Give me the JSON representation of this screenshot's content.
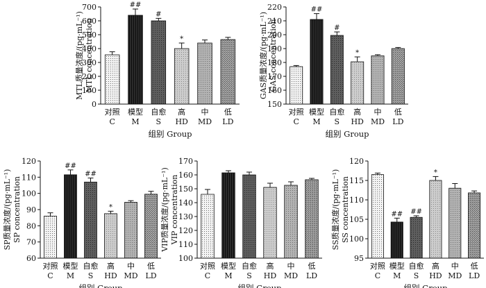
{
  "chart_data": [
    {
      "type": "bar",
      "panel": "MTL",
      "categories": [
        "C",
        "M",
        "S",
        "HD",
        "MD",
        "LD"
      ],
      "category_labels_cn": [
        "对照",
        "模型",
        "自愈",
        "高",
        "中",
        "低"
      ],
      "values": [
        355,
        640,
        600,
        400,
        440,
        465
      ],
      "errors": [
        22,
        45,
        18,
        40,
        22,
        16
      ],
      "significance": [
        "",
        "##",
        "#",
        "*",
        "",
        ""
      ],
      "ylabel_cn": "MTL质量浓度/(pg·mL⁻¹)",
      "ylabel": "MTL concentration",
      "xlabel": "组别 Group",
      "ylim": [
        0,
        700
      ],
      "yticks": [
        0,
        100,
        200,
        300,
        400,
        500,
        600,
        700
      ]
    },
    {
      "type": "bar",
      "panel": "GAS",
      "categories": [
        "C",
        "M",
        "S",
        "HD",
        "MD",
        "LD"
      ],
      "category_labels_cn": [
        "对照",
        "模型",
        "自愈",
        "高",
        "中",
        "低"
      ],
      "values": [
        177,
        211,
        199.5,
        180.5,
        184.8,
        190
      ],
      "errors": [
        0.8,
        4.2,
        2.5,
        3.5,
        0.8,
        0.8
      ],
      "significance": [
        "",
        "##",
        "#",
        "*",
        "",
        ""
      ],
      "ylabel_cn": "GAS质量浓度/(pg·mL⁻¹)",
      "ylabel": "GAS concentration",
      "xlabel": "组别 Group",
      "ylim": [
        150,
        220
      ],
      "yticks": [
        150,
        160,
        170,
        180,
        190,
        200,
        210,
        220
      ]
    },
    {
      "type": "bar",
      "panel": "SP",
      "categories": [
        "C",
        "M",
        "S",
        "HD",
        "MD",
        "LD"
      ],
      "category_labels_cn": [
        "对照",
        "模型",
        "自愈",
        "高",
        "中",
        "低"
      ],
      "values": [
        86,
        111.5,
        107,
        87.5,
        94.5,
        99.5
      ],
      "errors": [
        2,
        3,
        2.5,
        1.5,
        1,
        1.8
      ],
      "significance": [
        "",
        "##",
        "##",
        "*",
        "",
        ""
      ],
      "ylabel_cn": "SP质量浓度/(pg·mL⁻¹)",
      "ylabel": "SP concentration",
      "xlabel": "组别 Group",
      "ylim": [
        60,
        120
      ],
      "yticks": [
        60,
        70,
        80,
        90,
        100,
        110,
        120
      ]
    },
    {
      "type": "bar",
      "panel": "VIP",
      "categories": [
        "C",
        "M",
        "S",
        "HD",
        "MD",
        "LD"
      ],
      "category_labels_cn": [
        "对照",
        "模型",
        "自愈",
        "高",
        "中",
        "低"
      ],
      "values": [
        146,
        161.5,
        160,
        151,
        152.5,
        156.5
      ],
      "errors": [
        3.5,
        1.5,
        2,
        3,
        2.5,
        1
      ],
      "significance": [
        "",
        "",
        "",
        "",
        "",
        ""
      ],
      "ylabel_cn": "VIP质量浓度/(pg·mL⁻¹)",
      "ylabel": "VIP concentration",
      "xlabel": "组别 Group",
      "ylim": [
        100,
        170
      ],
      "yticks": [
        100,
        110,
        120,
        130,
        140,
        150,
        160,
        170
      ]
    },
    {
      "type": "bar",
      "panel": "SS",
      "categories": [
        "C",
        "M",
        "S",
        "HD",
        "MD",
        "LD"
      ],
      "category_labels_cn": [
        "对照",
        "模型",
        "自愈",
        "高",
        "中",
        "低"
      ],
      "values": [
        116.5,
        104.3,
        105.5,
        115,
        113,
        111.8
      ],
      "errors": [
        0.4,
        1,
        0.4,
        1,
        1.2,
        0.5
      ],
      "significance": [
        "",
        "##",
        "##",
        "*",
        "",
        ""
      ],
      "ylabel_cn": "SS质量浓度/(pg·mL⁻¹)",
      "ylabel": "SS concentration",
      "xlabel": "组别 Group",
      "ylim": [
        95,
        120
      ],
      "yticks": [
        95,
        100,
        105,
        110,
        115,
        120
      ]
    }
  ]
}
